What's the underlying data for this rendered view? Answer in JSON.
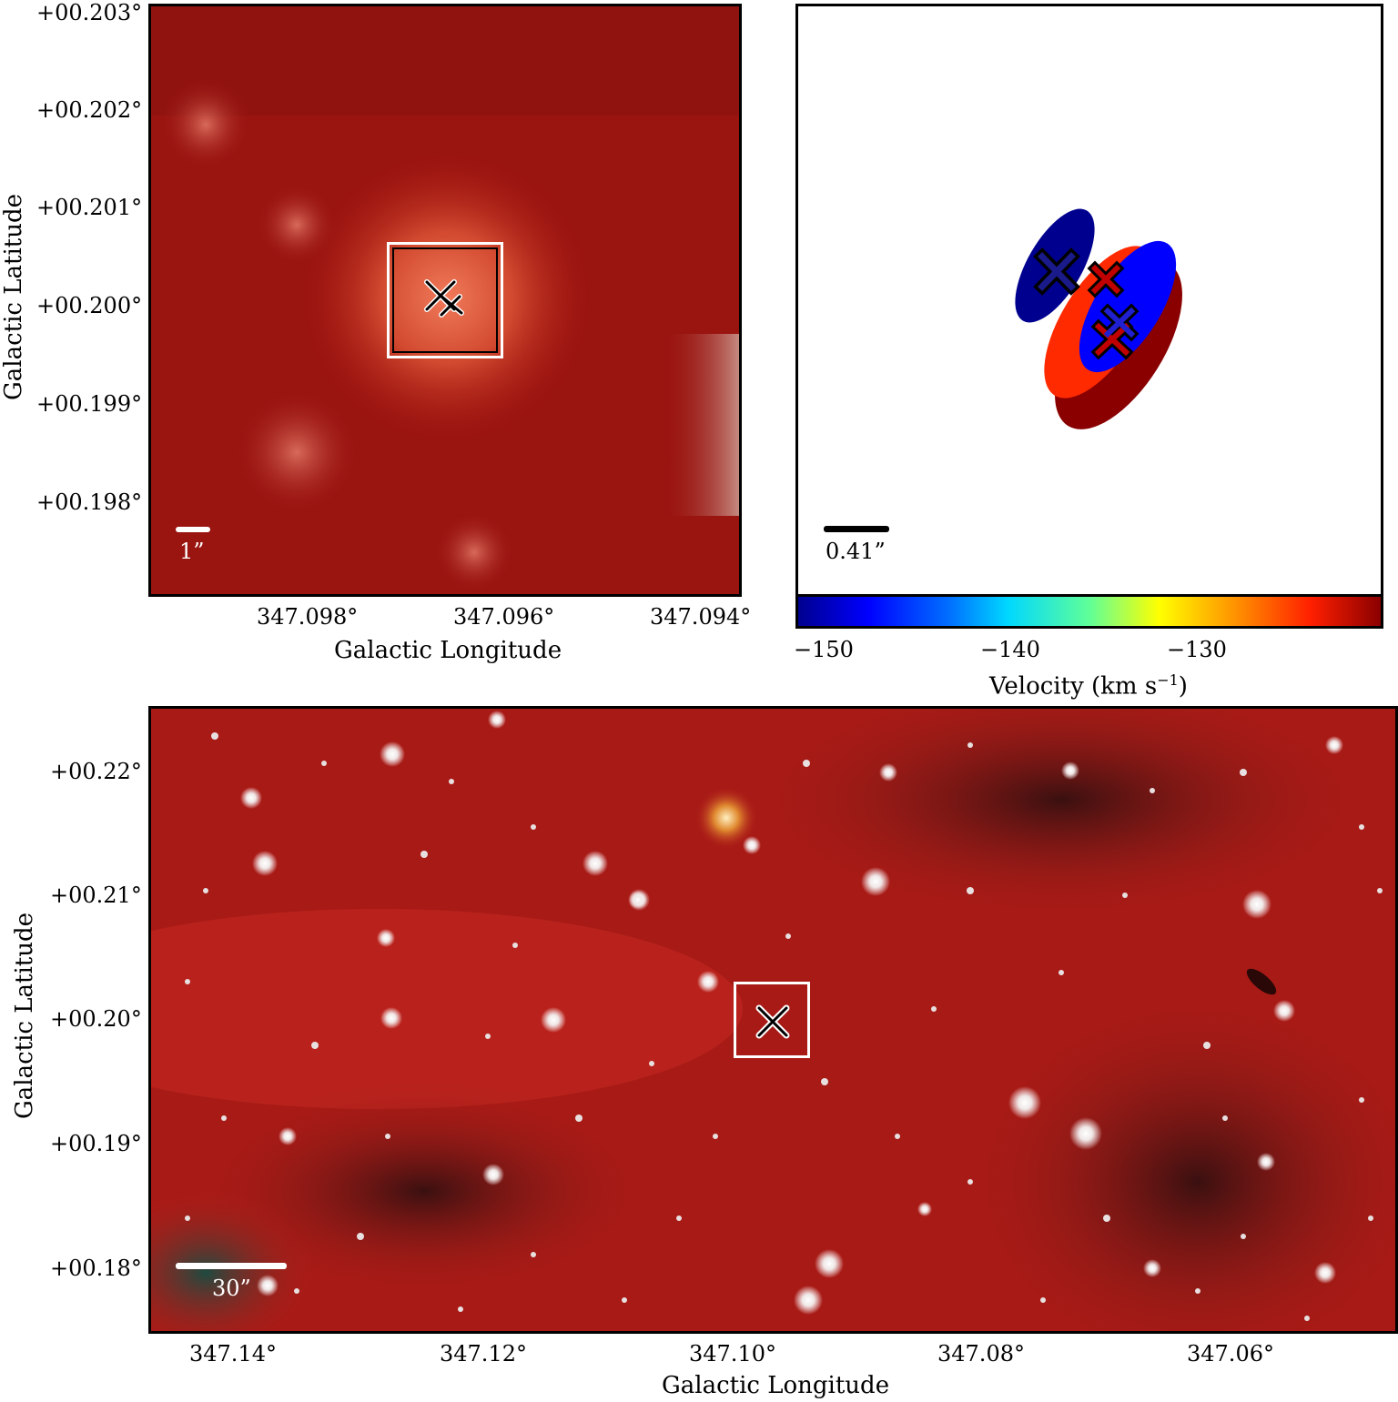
{
  "top_left": {
    "x_ticks": [
      "347.098°",
      "347.096°",
      "347.094°"
    ],
    "y_ticks": [
      "+00.203°",
      "+00.202°",
      "+00.201°",
      "+00.200°",
      "+00.199°",
      "+00.198°"
    ],
    "xlabel": "Galactic Longitude",
    "ylabel": "Galactic Latitude",
    "scalebar_label": "1”",
    "background_color": "#9a1410"
  },
  "top_right": {
    "scalebar_label": "0.41”",
    "colorbar_ticks": [
      "−150",
      "−140",
      "−130"
    ],
    "colorbar_label": "Velocity (km s",
    "colorbar_label_sup": "−1",
    "colorbar_label_end": ")",
    "colorbar_colors": [
      "#00008f",
      "#0000ff",
      "#00b8ff",
      "#40ffbf",
      "#ffff00",
      "#ff8a00",
      "#ff1f00",
      "#8a0000"
    ]
  },
  "bottom": {
    "x_ticks": [
      "347.14°",
      "347.12°",
      "347.10°",
      "347.08°",
      "347.06°"
    ],
    "y_ticks": [
      "+00.22°",
      "+00.21°",
      "+00.20°",
      "+00.19°",
      "+00.18°"
    ],
    "xlabel": "Galactic Longitude",
    "ylabel": "Galactic Latitude",
    "scalebar_label": "30”",
    "background_color": "#b0201a"
  }
}
